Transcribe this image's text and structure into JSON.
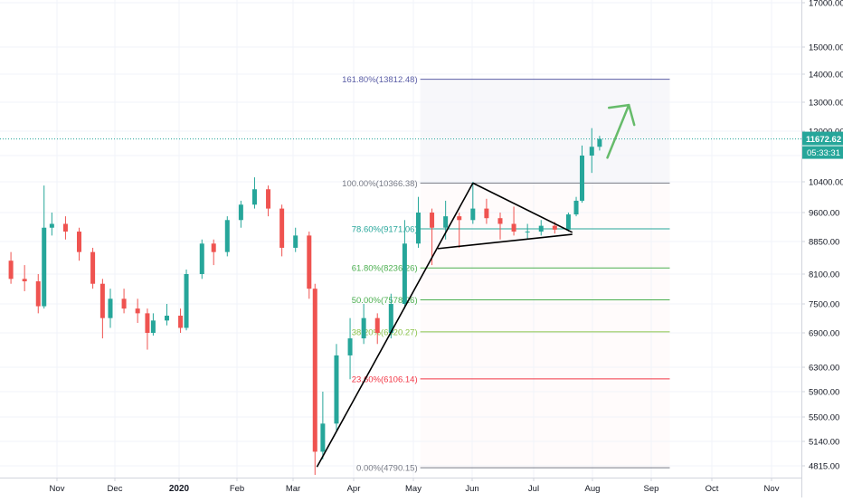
{
  "chart_data": {
    "type": "candlestick",
    "title": "",
    "xlabel": "",
    "ylabel": "",
    "y_scale": "log",
    "ylim": [
      4650,
      17900
    ],
    "grid": true,
    "x_ticks": [
      {
        "label": "Nov",
        "bold": false
      },
      {
        "label": "Dec",
        "bold": false
      },
      {
        "label": "2020",
        "bold": true
      },
      {
        "label": "Feb",
        "bold": false
      },
      {
        "label": "Mar",
        "bold": false
      },
      {
        "label": "Apr",
        "bold": false
      },
      {
        "label": "May",
        "bold": false
      },
      {
        "label": "Jun",
        "bold": false
      },
      {
        "label": "Jul",
        "bold": false
      },
      {
        "label": "Aug",
        "bold": false
      },
      {
        "label": "Sep",
        "bold": false
      },
      {
        "label": "Oct",
        "bold": false
      },
      {
        "label": "Nov",
        "bold": false
      }
    ],
    "y_ticks": [
      "17000.00",
      "15000.00",
      "14000.00",
      "13000.00",
      "12000.00",
      "11000.00",
      "10400.00",
      "9600.00",
      "8850.00",
      "8100.00",
      "7500.00",
      "6900.00",
      "6300.00",
      "5900.00",
      "5500.00",
      "5140.00",
      "4815.00"
    ],
    "y_tick_values": [
      17000,
      15000,
      14000,
      13000,
      12000,
      11000,
      10400,
      9600,
      8850,
      8100,
      7500,
      6900,
      6300,
      5900,
      5500,
      5140,
      4815
    ],
    "last_price": {
      "label": "11672.62",
      "value": 11672.62,
      "color": "#26a69a"
    },
    "countdown": {
      "label": "05:33:31",
      "color": "#26a69a"
    },
    "fibonacci": [
      {
        "label": "161.80%(13812.48)",
        "value": 13812.48,
        "color": "#5b5ea6"
      },
      {
        "label": "100.00%(10366.38)",
        "value": 10366.38,
        "color": "#787b86"
      },
      {
        "label": "78.60%(9171.06)",
        "value": 9171.06,
        "color": "#26a69a"
      },
      {
        "label": "61.80%(8236.26)",
        "value": 8236.26,
        "color": "#4caf50"
      },
      {
        "label": "50.00%(7578.26)",
        "value": 7578.26,
        "color": "#4caf50"
      },
      {
        "label": "38.20%(6920.27)",
        "value": 6920.27,
        "color": "#8bc34a"
      },
      {
        "label": "23.60%(6106.14)",
        "value": 6106.14,
        "color": "#f23645"
      },
      {
        "label": "0.00%(4790.15)",
        "value": 4790.15,
        "color": "#787b86"
      }
    ],
    "colors": {
      "up": "#26a69a",
      "down": "#ef5350",
      "trendline": "#000000",
      "arrow": "#66bb6a"
    },
    "series": [
      {
        "x": "2019-10-01",
        "open": 8300,
        "high": 8500,
        "low": 8050,
        "close": 8400
      },
      {
        "x": "2019-10-08",
        "open": 8400,
        "high": 8600,
        "low": 7900,
        "close": 8000
      },
      {
        "x": "2019-10-15",
        "open": 8000,
        "high": 8300,
        "low": 7750,
        "close": 7950
      },
      {
        "x": "2019-10-22",
        "open": 7950,
        "high": 8100,
        "low": 7300,
        "close": 7450
      },
      {
        "x": "2019-10-25",
        "open": 7450,
        "high": 10300,
        "low": 7400,
        "close": 9200
      },
      {
        "x": "2019-10-29",
        "open": 9200,
        "high": 9600,
        "low": 9000,
        "close": 9300
      },
      {
        "x": "2019-11-05",
        "open": 9300,
        "high": 9500,
        "low": 8900,
        "close": 9100
      },
      {
        "x": "2019-11-12",
        "open": 9100,
        "high": 9200,
        "low": 8400,
        "close": 8600
      },
      {
        "x": "2019-11-19",
        "open": 8600,
        "high": 8700,
        "low": 7800,
        "close": 7900
      },
      {
        "x": "2019-11-24",
        "open": 7900,
        "high": 8000,
        "low": 6800,
        "close": 7200
      },
      {
        "x": "2019-11-28",
        "open": 7200,
        "high": 7800,
        "low": 7000,
        "close": 7600
      },
      {
        "x": "2019-12-05",
        "open": 7600,
        "high": 7800,
        "low": 7300,
        "close": 7400
      },
      {
        "x": "2019-12-12",
        "open": 7400,
        "high": 7600,
        "low": 7100,
        "close": 7300
      },
      {
        "x": "2019-12-17",
        "open": 7300,
        "high": 7400,
        "low": 6600,
        "close": 6900
      },
      {
        "x": "2019-12-20",
        "open": 6900,
        "high": 7300,
        "low": 6850,
        "close": 7150
      },
      {
        "x": "2019-12-27",
        "open": 7150,
        "high": 7500,
        "low": 7050,
        "close": 7250
      },
      {
        "x": "2020-01-03",
        "open": 7250,
        "high": 7400,
        "low": 6900,
        "close": 7000
      },
      {
        "x": "2020-01-06",
        "open": 7000,
        "high": 8200,
        "low": 6950,
        "close": 8100
      },
      {
        "x": "2020-01-14",
        "open": 8100,
        "high": 8900,
        "low": 8000,
        "close": 8800
      },
      {
        "x": "2020-01-20",
        "open": 8800,
        "high": 8900,
        "low": 8300,
        "close": 8600
      },
      {
        "x": "2020-01-27",
        "open": 8600,
        "high": 9500,
        "low": 8500,
        "close": 9400
      },
      {
        "x": "2020-02-03",
        "open": 9400,
        "high": 9900,
        "low": 9200,
        "close": 9800
      },
      {
        "x": "2020-02-10",
        "open": 9800,
        "high": 10500,
        "low": 9700,
        "close": 10200
      },
      {
        "x": "2020-02-17",
        "open": 10200,
        "high": 10300,
        "low": 9500,
        "close": 9700
      },
      {
        "x": "2020-02-24",
        "open": 9700,
        "high": 9800,
        "low": 8500,
        "close": 8700
      },
      {
        "x": "2020-03-02",
        "open": 8700,
        "high": 9200,
        "low": 8600,
        "close": 9000
      },
      {
        "x": "2020-03-09",
        "open": 9000,
        "high": 9100,
        "low": 7600,
        "close": 7800
      },
      {
        "x": "2020-03-12",
        "open": 7800,
        "high": 7900,
        "low": 4700,
        "close": 5000
      },
      {
        "x": "2020-03-16",
        "open": 5000,
        "high": 5900,
        "low": 4900,
        "close": 5400
      },
      {
        "x": "2020-03-23",
        "open": 5400,
        "high": 6700,
        "low": 5300,
        "close": 6500
      },
      {
        "x": "2020-03-30",
        "open": 6500,
        "high": 7200,
        "low": 6100,
        "close": 6800
      },
      {
        "x": "2020-04-06",
        "open": 6800,
        "high": 7500,
        "low": 6700,
        "close": 7200
      },
      {
        "x": "2020-04-13",
        "open": 7200,
        "high": 7300,
        "low": 6700,
        "close": 6900
      },
      {
        "x": "2020-04-20",
        "open": 6900,
        "high": 7700,
        "low": 6800,
        "close": 7500
      },
      {
        "x": "2020-04-27",
        "open": 7500,
        "high": 9400,
        "low": 7400,
        "close": 8800
      },
      {
        "x": "2020-05-04",
        "open": 8800,
        "high": 10000,
        "low": 8700,
        "close": 9600
      },
      {
        "x": "2020-05-11",
        "open": 9600,
        "high": 9700,
        "low": 8300,
        "close": 9200
      },
      {
        "x": "2020-05-18",
        "open": 9200,
        "high": 9900,
        "low": 8900,
        "close": 9500
      },
      {
        "x": "2020-05-25",
        "open": 9500,
        "high": 9600,
        "low": 8700,
        "close": 9400
      },
      {
        "x": "2020-06-01",
        "open": 9400,
        "high": 10400,
        "low": 9300,
        "close": 9700
      },
      {
        "x": "2020-06-08",
        "open": 9700,
        "high": 9950,
        "low": 9300,
        "close": 9450
      },
      {
        "x": "2020-06-15",
        "open": 9450,
        "high": 9600,
        "low": 8900,
        "close": 9300
      },
      {
        "x": "2020-06-22",
        "open": 9300,
        "high": 9750,
        "low": 9000,
        "close": 9100
      },
      {
        "x": "2020-06-29",
        "open": 9100,
        "high": 9300,
        "low": 8900,
        "close": 9100
      },
      {
        "x": "2020-07-06",
        "open": 9100,
        "high": 9400,
        "low": 9000,
        "close": 9250
      },
      {
        "x": "2020-07-13",
        "open": 9250,
        "high": 9350,
        "low": 9050,
        "close": 9150
      },
      {
        "x": "2020-07-20",
        "open": 9150,
        "high": 9600,
        "low": 9100,
        "close": 9550
      },
      {
        "x": "2020-07-24",
        "open": 9550,
        "high": 10000,
        "low": 9500,
        "close": 9900
      },
      {
        "x": "2020-07-27",
        "open": 9900,
        "high": 11400,
        "low": 9850,
        "close": 11000
      },
      {
        "x": "2020-08-01",
        "open": 11000,
        "high": 12100,
        "low": 10600,
        "close": 11350
      },
      {
        "x": "2020-08-05",
        "open": 11350,
        "high": 11800,
        "low": 11200,
        "close": 11672.62
      }
    ],
    "trendlines": [
      {
        "name": "rising-trendline",
        "x1": "2020-03-13",
        "y1": 4800,
        "x2": "2020-06-01",
        "y2": 10366
      },
      {
        "name": "triangle-upper-line",
        "x1": "2020-06-01",
        "y1": 10366,
        "x2": "2020-07-22",
        "y2": 9080
      },
      {
        "name": "triangle-lower-line",
        "x1": "2020-05-14",
        "y1": 8680,
        "x2": "2020-07-22",
        "y2": 9030
      }
    ],
    "arrow": {
      "x1": "2020-08-09",
      "y1": 10950,
      "x2": "2020-08-20",
      "y2": 12900
    },
    "fib_zone": {
      "x1": "2020-05-05",
      "x2": "2020-09-10"
    }
  }
}
